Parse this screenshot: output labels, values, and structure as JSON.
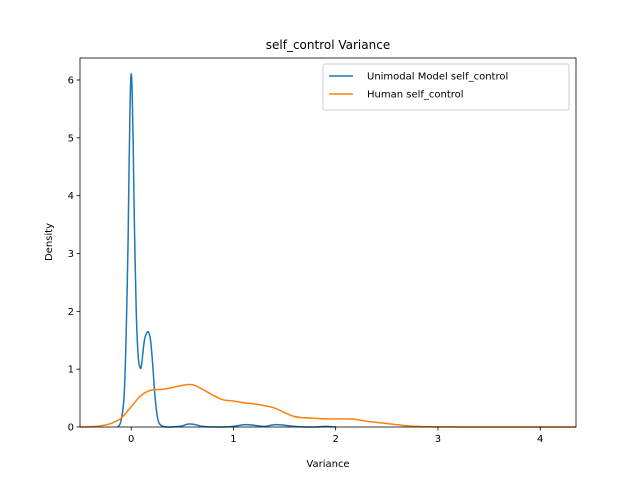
{
  "chart_data": {
    "type": "line",
    "title": "self_control Variance",
    "xlabel": "Variance",
    "ylabel": "Density",
    "xlim": [
      -0.5,
      4.35
    ],
    "ylim": [
      0,
      6.38
    ],
    "xticks": [
      0,
      1,
      2,
      3,
      4
    ],
    "yticks": [
      0,
      1,
      2,
      3,
      4,
      5,
      6
    ],
    "grid": false,
    "legend_position": "top-right",
    "series": [
      {
        "name": "Unimodal Model self_control",
        "color": "#1f77b4",
        "x": [
          -0.13,
          -0.1,
          -0.07,
          -0.05,
          -0.03,
          -0.02,
          -0.01,
          0.0,
          0.01,
          0.02,
          0.03,
          0.05,
          0.07,
          0.09,
          0.1,
          0.11,
          0.13,
          0.15,
          0.17,
          0.19,
          0.21,
          0.23,
          0.25,
          0.27,
          0.3,
          0.35,
          0.4,
          0.5,
          0.55,
          0.6,
          0.65,
          0.7,
          0.8,
          0.9,
          1.0,
          1.1,
          1.2,
          1.3,
          1.4,
          1.5,
          1.6,
          1.7,
          1.8,
          1.9,
          2.0
        ],
        "values": [
          0.0,
          0.1,
          0.5,
          1.5,
          3.2,
          4.5,
          5.6,
          6.1,
          5.8,
          4.9,
          3.7,
          2.0,
          1.2,
          1.02,
          1.05,
          1.2,
          1.5,
          1.62,
          1.64,
          1.5,
          1.1,
          0.6,
          0.25,
          0.08,
          0.02,
          0.0,
          0.0,
          0.02,
          0.05,
          0.05,
          0.03,
          0.01,
          0.0,
          0.0,
          0.01,
          0.04,
          0.03,
          0.01,
          0.04,
          0.03,
          0.01,
          0.0,
          0.0,
          0.01,
          0.0
        ]
      },
      {
        "name": "Human self_control",
        "color": "#ff7f0e",
        "x": [
          -0.5,
          -0.4,
          -0.3,
          -0.2,
          -0.1,
          0.0,
          0.1,
          0.2,
          0.3,
          0.4,
          0.5,
          0.6,
          0.7,
          0.8,
          0.9,
          1.0,
          1.1,
          1.2,
          1.3,
          1.4,
          1.5,
          1.6,
          1.7,
          1.8,
          1.9,
          2.0,
          2.1,
          2.2,
          2.3,
          2.4,
          2.5,
          2.6,
          2.7,
          2.8,
          2.9,
          3.0,
          3.2,
          3.4,
          3.6,
          3.8,
          4.0,
          4.2,
          4.35
        ],
        "values": [
          0.0,
          0.005,
          0.02,
          0.06,
          0.15,
          0.35,
          0.55,
          0.64,
          0.65,
          0.68,
          0.72,
          0.73,
          0.65,
          0.55,
          0.47,
          0.45,
          0.42,
          0.4,
          0.37,
          0.33,
          0.25,
          0.18,
          0.16,
          0.15,
          0.14,
          0.14,
          0.14,
          0.13,
          0.1,
          0.08,
          0.06,
          0.04,
          0.02,
          0.01,
          0.005,
          0.002,
          0.001,
          0.0,
          0.0,
          0.0,
          0.0,
          0.0,
          0.0
        ]
      }
    ]
  }
}
